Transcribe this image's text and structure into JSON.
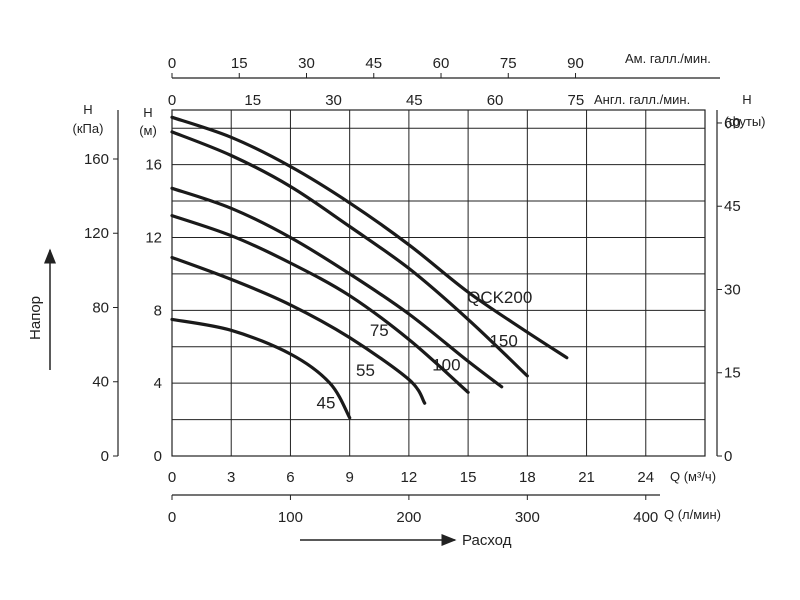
{
  "chart_data": {
    "type": "line",
    "title": "",
    "x": {
      "label": "Q (м³/ч)",
      "min": 0,
      "max": 27,
      "ticks": [
        0,
        3,
        6,
        9,
        12,
        15,
        18,
        21,
        24
      ]
    },
    "y": {
      "label": "H (м)",
      "label_top": "H",
      "label_unit": "(м)",
      "min": 0,
      "max": 19,
      "ticks": [
        0,
        4,
        8,
        12,
        16
      ]
    },
    "secondary_axes": {
      "kpa": {
        "label_top": "H",
        "label_unit": "(кПа)",
        "ticks": [
          0,
          40,
          80,
          120,
          160
        ],
        "per_m": 9.81
      },
      "feet": {
        "label_top": "H",
        "label_unit": "(футы)",
        "ticks": [
          0,
          15,
          30,
          45,
          60
        ],
        "per_m": 3.28084
      },
      "lmin": {
        "label": "Q (л/мин)",
        "ticks": [
          0,
          100,
          200,
          300,
          400
        ],
        "per_m3h": 16.6667
      },
      "us_gpm": {
        "label": "Ам. галл./мин.",
        "ticks": [
          0,
          15,
          30,
          45,
          60,
          75,
          90
        ],
        "per_m3h": 4.40287
      },
      "uk_gpm": {
        "label": "Англ. галл./мин.",
        "ticks": [
          0,
          15,
          30,
          45,
          60,
          75
        ],
        "per_m3h": 3.66615
      }
    },
    "y_axis_title": "Напор",
    "x_axis_title": "Расход",
    "grid": true,
    "series": [
      {
        "name": "QCK200",
        "x": [
          0,
          3,
          6,
          9,
          12,
          15,
          18,
          20
        ],
        "y": [
          18.6,
          17.5,
          15.9,
          13.9,
          11.6,
          9.0,
          6.8,
          5.4
        ]
      },
      {
        "name": "150",
        "x": [
          0,
          3,
          6,
          9,
          12,
          15,
          18
        ],
        "y": [
          17.8,
          16.5,
          14.8,
          12.6,
          10.3,
          7.5,
          4.4
        ]
      },
      {
        "name": "100",
        "x": [
          0,
          3,
          6,
          9,
          12,
          15,
          16.7
        ],
        "y": [
          14.7,
          13.6,
          12.0,
          10.0,
          7.8,
          5.2,
          3.8
        ]
      },
      {
        "name": "75",
        "x": [
          0,
          3,
          6,
          9,
          12,
          15
        ],
        "y": [
          13.2,
          12.1,
          10.6,
          8.8,
          6.4,
          3.5
        ]
      },
      {
        "name": "55",
        "x": [
          0,
          3,
          6,
          9,
          12,
          12.8
        ],
        "y": [
          10.9,
          9.7,
          8.3,
          6.5,
          4.2,
          2.9
        ]
      },
      {
        "name": "45",
        "x": [
          0,
          3,
          6,
          8,
          9
        ],
        "y": [
          7.5,
          6.9,
          5.6,
          4.0,
          2.1
        ]
      }
    ]
  }
}
